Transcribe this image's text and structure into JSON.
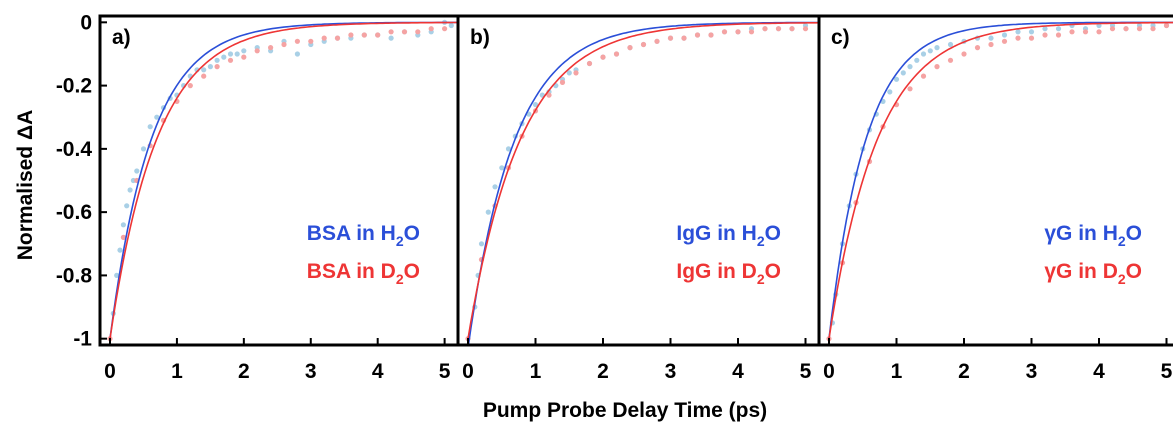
{
  "axes": {
    "ylabel": "Normalised ΔA",
    "xlabel": "Pump Probe Delay Time (ps)"
  },
  "colors": {
    "h2o_line": "#2b4fd8",
    "h2o_points": "#a9d0e6",
    "d2o_line": "#ee3535",
    "d2o_points": "#f5a3a3",
    "frame": "#000000"
  },
  "chart_data": [
    {
      "type": "scatter",
      "panel_label": "a)",
      "xlim": [
        0,
        5.2
      ],
      "ylim": [
        -1.02,
        0.02
      ],
      "xticks": [
        "0",
        "1",
        "2",
        "3",
        "4",
        "5"
      ],
      "yticks": [
        "0",
        "-0.2",
        "-0.4",
        "-0.6",
        "-0.8",
        "-1"
      ],
      "grid": false,
      "legend_position": "lower-right",
      "series": [
        {
          "name": "BSA in H2O",
          "label_main": "BSA in H",
          "label_sub": "2",
          "label_end": "O",
          "color_key": "h2o",
          "fit": {
            "tau": 0.62,
            "y0": -1.0,
            "x0": 0.0
          },
          "x": [
            0.05,
            0.1,
            0.15,
            0.2,
            0.25,
            0.3,
            0.35,
            0.4,
            0.5,
            0.6,
            0.7,
            0.8,
            0.9,
            1.0,
            1.1,
            1.2,
            1.3,
            1.4,
            1.5,
            1.6,
            1.7,
            1.8,
            1.9,
            2.0,
            2.2,
            2.4,
            2.6,
            2.8,
            3.0,
            3.2,
            3.4,
            3.6,
            3.8,
            4.0,
            4.2,
            4.4,
            4.6,
            4.8,
            5.0,
            5.1
          ],
          "y": [
            -0.92,
            -0.8,
            -0.72,
            -0.64,
            -0.58,
            -0.53,
            -0.5,
            -0.47,
            -0.4,
            -0.33,
            -0.3,
            -0.27,
            -0.24,
            -0.23,
            -0.2,
            -0.17,
            -0.15,
            -0.15,
            -0.14,
            -0.12,
            -0.11,
            -0.1,
            -0.1,
            -0.09,
            -0.08,
            -0.09,
            -0.06,
            -0.1,
            -0.07,
            -0.06,
            -0.05,
            -0.05,
            -0.04,
            -0.04,
            -0.05,
            -0.03,
            -0.04,
            -0.03,
            0.0,
            -0.01
          ]
        },
        {
          "name": "BSA in D2O",
          "label_main": "BSA in D",
          "label_sub": "2",
          "label_end": "O",
          "color_key": "d2o",
          "fit": {
            "tau": 0.7,
            "y0": -1.0,
            "x0": 0.0
          },
          "x": [
            0.0,
            0.2,
            0.4,
            0.6,
            0.8,
            1.0,
            1.2,
            1.4,
            1.6,
            1.8,
            2.0,
            2.2,
            2.4,
            2.6,
            2.8,
            3.0,
            3.2,
            3.4,
            3.6,
            3.8,
            4.0,
            4.2,
            4.4,
            4.6,
            4.8,
            5.0
          ],
          "y": [
            -1.0,
            -0.68,
            -0.5,
            -0.39,
            -0.31,
            -0.25,
            -0.2,
            -0.17,
            -0.14,
            -0.12,
            -0.11,
            -0.09,
            -0.08,
            -0.07,
            -0.06,
            -0.06,
            -0.05,
            -0.05,
            -0.04,
            -0.04,
            -0.04,
            -0.03,
            -0.03,
            -0.03,
            -0.02,
            -0.02
          ]
        }
      ]
    },
    {
      "type": "scatter",
      "panel_label": "b)",
      "xlim": [
        0,
        5.2
      ],
      "ylim": [
        -1.02,
        0.02
      ],
      "xticks": [
        "0",
        "1",
        "2",
        "3",
        "4",
        "5"
      ],
      "yticks": [],
      "grid": false,
      "legend_position": "lower-right",
      "series": [
        {
          "name": "IgG in H2O",
          "label_main": "IgG in H",
          "label_sub": "2",
          "label_end": "O",
          "color_key": "h2o",
          "fit": {
            "tau": 0.68,
            "y0": -1.03,
            "x0": 0.0
          },
          "x": [
            0.1,
            0.15,
            0.2,
            0.3,
            0.4,
            0.5,
            0.6,
            0.7,
            0.8,
            0.9,
            1.0,
            1.1,
            1.2,
            1.3,
            1.4,
            1.5,
            1.6,
            1.8,
            2.0,
            2.2,
            2.4,
            2.6,
            2.8,
            3.0,
            3.2,
            3.4,
            3.6,
            3.8,
            4.0,
            4.2,
            4.4,
            4.6,
            4.8,
            5.0
          ],
          "y": [
            -0.9,
            -0.8,
            -0.7,
            -0.6,
            -0.52,
            -0.46,
            -0.4,
            -0.36,
            -0.32,
            -0.29,
            -0.26,
            -0.23,
            -0.22,
            -0.2,
            -0.18,
            -0.16,
            -0.15,
            -0.13,
            -0.11,
            -0.1,
            -0.08,
            -0.07,
            -0.06,
            -0.05,
            -0.05,
            -0.04,
            -0.04,
            -0.03,
            -0.03,
            -0.02,
            -0.02,
            -0.02,
            -0.02,
            -0.01
          ]
        },
        {
          "name": "IgG in D2O",
          "label_main": "IgG in D",
          "label_sub": "2",
          "label_end": "O",
          "color_key": "d2o",
          "fit": {
            "tau": 0.78,
            "y0": -1.0,
            "x0": 0.0
          },
          "x": [
            0.0,
            0.2,
            0.4,
            0.6,
            0.8,
            1.0,
            1.2,
            1.4,
            1.6,
            1.8,
            2.0,
            2.2,
            2.4,
            2.6,
            2.8,
            3.0,
            3.2,
            3.4,
            3.6,
            3.8,
            4.0,
            4.2,
            4.4,
            4.6,
            4.8,
            5.0
          ],
          "y": [
            -1.0,
            -0.75,
            -0.58,
            -0.46,
            -0.36,
            -0.28,
            -0.23,
            -0.19,
            -0.16,
            -0.13,
            -0.11,
            -0.1,
            -0.08,
            -0.07,
            -0.06,
            -0.05,
            -0.05,
            -0.04,
            -0.04,
            -0.03,
            -0.03,
            -0.03,
            -0.02,
            -0.02,
            -0.02,
            -0.02
          ]
        }
      ]
    },
    {
      "type": "scatter",
      "panel_label": "c)",
      "xlim": [
        0,
        5.2
      ],
      "ylim": [
        -1.02,
        0.02
      ],
      "xticks": [
        "0",
        "1",
        "2",
        "3",
        "4",
        "5"
      ],
      "yticks": [],
      "grid": false,
      "legend_position": "lower-right",
      "series": [
        {
          "name": "γG in H2O",
          "label_main": "γG in H",
          "label_sub": "2",
          "label_end": "O",
          "color_key": "h2o",
          "fit": {
            "tau": 0.55,
            "y0": -1.0,
            "x0": 0.0
          },
          "x": [
            0.05,
            0.1,
            0.2,
            0.3,
            0.4,
            0.5,
            0.6,
            0.7,
            0.8,
            0.9,
            1.0,
            1.1,
            1.2,
            1.3,
            1.4,
            1.5,
            1.6,
            1.8,
            2.0,
            2.2,
            2.4,
            2.6,
            2.8,
            3.0,
            3.2,
            3.4,
            3.6,
            3.8,
            4.0,
            4.2,
            4.4,
            4.6,
            4.8,
            5.0
          ],
          "y": [
            -0.95,
            -0.86,
            -0.7,
            -0.58,
            -0.48,
            -0.4,
            -0.34,
            -0.29,
            -0.25,
            -0.22,
            -0.18,
            -0.16,
            -0.14,
            -0.12,
            -0.1,
            -0.09,
            -0.08,
            -0.07,
            -0.06,
            -0.05,
            -0.05,
            -0.04,
            -0.03,
            -0.03,
            -0.02,
            -0.02,
            -0.01,
            -0.02,
            -0.01,
            -0.01,
            -0.02,
            -0.01,
            -0.01,
            -0.01
          ]
        },
        {
          "name": "γG in D2O",
          "label_main": "γG in D",
          "label_sub": "2",
          "label_end": "O",
          "color_key": "d2o",
          "fit": {
            "tau": 0.72,
            "y0": -1.0,
            "x0": 0.0
          },
          "x": [
            0.0,
            0.2,
            0.4,
            0.6,
            0.8,
            1.0,
            1.2,
            1.4,
            1.6,
            1.8,
            2.0,
            2.2,
            2.4,
            2.6,
            2.8,
            3.0,
            3.2,
            3.4,
            3.6,
            3.8,
            4.0,
            4.2,
            4.4,
            4.6,
            4.8,
            5.0
          ],
          "y": [
            -1.0,
            -0.76,
            -0.57,
            -0.44,
            -0.33,
            -0.26,
            -0.21,
            -0.17,
            -0.14,
            -0.12,
            -0.1,
            -0.08,
            -0.07,
            -0.06,
            -0.05,
            -0.05,
            -0.04,
            -0.04,
            -0.03,
            -0.03,
            -0.03,
            -0.02,
            -0.02,
            -0.02,
            -0.02,
            -0.01
          ]
        }
      ]
    }
  ]
}
